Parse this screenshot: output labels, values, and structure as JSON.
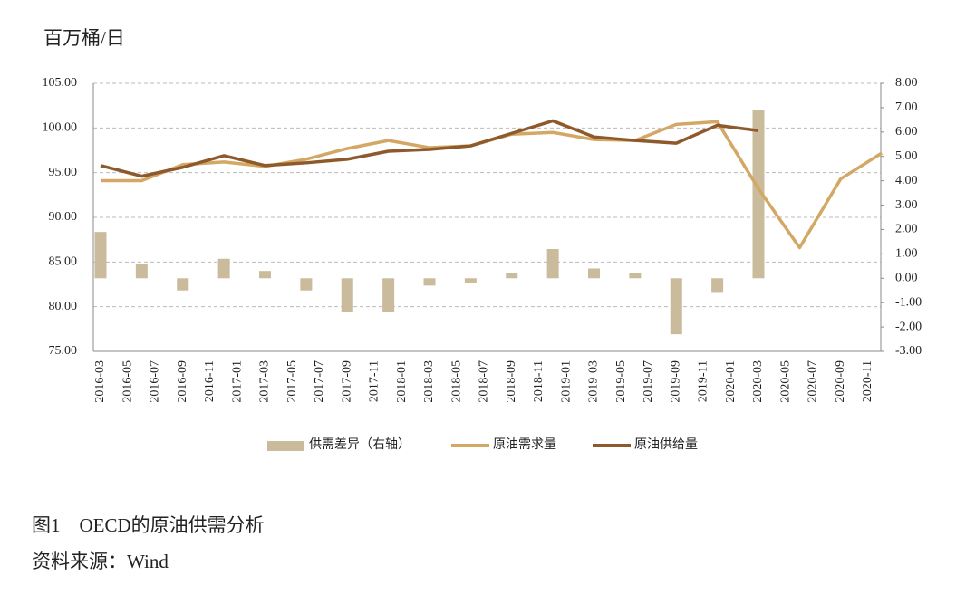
{
  "chart_data": {
    "type": "bar",
    "unit_label": "百万桶/日",
    "caption": "图1　OECD的原油供需分析",
    "source": "资料来源：Wind",
    "categories": [
      "2016-03",
      null,
      "2016-05",
      null,
      "2016-07",
      null,
      "2016-09",
      null,
      "2016-11",
      null,
      "2017-01",
      null,
      "2017-03",
      null,
      "2017-05",
      null,
      "2017-07",
      null,
      "2017-09",
      null,
      "2017-11",
      null,
      "2018-01",
      null,
      "2018-03",
      null,
      "2018-05",
      null,
      "2018-07",
      null,
      "2018-09",
      null,
      "2018-11",
      null,
      "2019-01",
      null,
      "2019-03",
      null,
      "2019-05",
      null,
      "2019-07",
      null,
      "2019-09",
      null,
      "2019-11",
      null,
      "2020-01",
      null,
      "2020-03",
      null,
      "2020-05",
      null,
      "2020-07",
      null,
      "2020-09",
      null,
      "2020-11",
      null
    ],
    "series": [
      {
        "name": "供需差异（右轴）",
        "type": "bar",
        "axis": "y2",
        "color": "#c9bb9b",
        "values": [
          1.9,
          null,
          null,
          0.6,
          null,
          null,
          -0.5,
          null,
          null,
          0.8,
          null,
          null,
          0.3,
          null,
          null,
          -0.5,
          null,
          null,
          -1.4,
          null,
          null,
          -1.4,
          null,
          null,
          -0.3,
          null,
          null,
          -0.2,
          null,
          null,
          0.2,
          null,
          null,
          1.2,
          null,
          null,
          0.4,
          null,
          null,
          0.2,
          null,
          null,
          -2.3,
          null,
          null,
          -0.6,
          null,
          null,
          6.9,
          null,
          null,
          null,
          null,
          null,
          null,
          null,
          null,
          null
        ]
      },
      {
        "name": "原油需求量",
        "type": "line",
        "color": "#d3a865",
        "values": [
          94.1,
          null,
          null,
          94.1,
          null,
          null,
          95.9,
          null,
          null,
          96.2,
          null,
          null,
          95.7,
          null,
          null,
          96.5,
          null,
          null,
          97.7,
          null,
          null,
          98.6,
          null,
          null,
          97.8,
          null,
          null,
          98.0,
          null,
          null,
          99.3,
          null,
          null,
          99.5,
          null,
          null,
          98.7,
          null,
          null,
          98.6,
          null,
          null,
          100.4,
          null,
          null,
          100.7,
          null,
          null,
          93.2,
          null,
          null,
          86.6,
          null,
          null,
          94.3,
          null,
          null,
          97.2
        ]
      },
      {
        "name": "原油供给量",
        "type": "line",
        "color": "#8e5a2c",
        "values": [
          95.8,
          null,
          null,
          94.6,
          null,
          null,
          95.6,
          null,
          null,
          96.9,
          null,
          null,
          95.8,
          null,
          null,
          96.1,
          null,
          null,
          96.5,
          null,
          null,
          97.4,
          null,
          null,
          97.6,
          null,
          null,
          98.0,
          null,
          null,
          99.4,
          null,
          null,
          100.8,
          null,
          null,
          99.0,
          null,
          null,
          98.6,
          null,
          null,
          98.3,
          null,
          null,
          100.3,
          null,
          null,
          99.7,
          null,
          null,
          null,
          null,
          null,
          null,
          null,
          null,
          null
        ]
      }
    ],
    "ylim": [
      75,
      105
    ],
    "yticks": [
      {
        "value": 75,
        "label": "75.00"
      },
      {
        "value": 80,
        "label": "80.00"
      },
      {
        "value": 85,
        "label": "85.00"
      },
      {
        "value": 90,
        "label": "90.00"
      },
      {
        "value": 95,
        "label": "95.00"
      },
      {
        "value": 100,
        "label": "100.00"
      },
      {
        "value": 105,
        "label": "105.00"
      }
    ],
    "y2lim": [
      -3,
      8
    ],
    "y2ticks": [
      {
        "value": -3,
        "label": "-3.00"
      },
      {
        "value": -2,
        "label": "-2.00"
      },
      {
        "value": -1,
        "label": "-1.00"
      },
      {
        "value": 0,
        "label": "0.00"
      },
      {
        "value": 1,
        "label": "1.00"
      },
      {
        "value": 2,
        "label": "2.00"
      },
      {
        "value": 3,
        "label": "3.00"
      },
      {
        "value": 4,
        "label": "4.00"
      },
      {
        "value": 5,
        "label": "5.00"
      },
      {
        "value": 6,
        "label": "6.00"
      },
      {
        "value": 7,
        "label": "7.00"
      },
      {
        "value": 8,
        "label": "8.00"
      }
    ],
    "grid": true
  }
}
